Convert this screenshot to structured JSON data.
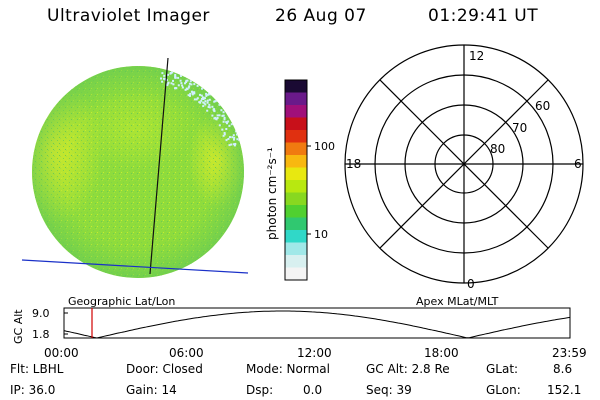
{
  "header": {
    "title": "Ultraviolet Imager",
    "date": "26 Aug 07",
    "time": "01:29:41 UT"
  },
  "colorbar": {
    "label": "photon cm⁻²s⁻¹",
    "ticks": [
      "100",
      "10"
    ],
    "colors": [
      "#1a0a33",
      "#6a1a8a",
      "#a0107a",
      "#c8101a",
      "#e03010",
      "#f07a10",
      "#f8b810",
      "#e8e810",
      "#b8e810",
      "#88d820",
      "#50d030",
      "#30c870",
      "#30d8c8",
      "#a0e8e8",
      "#d8f0f0",
      "#f4f4f4"
    ]
  },
  "imager": {
    "left_label": "Geographic Lat/Lon",
    "right_label": "Apex MLat/MLT"
  },
  "polar": {
    "mlt_labels": [
      "12",
      "18",
      "6",
      "0"
    ],
    "lat_labels": [
      "60",
      "70",
      "80"
    ]
  },
  "altitude_plot": {
    "ylabel": "GC Alt",
    "yticks": [
      "9.0",
      "1.8"
    ],
    "xticks": [
      "00:00",
      "06:00",
      "12:00",
      "18:00",
      "23:59"
    ],
    "marker_color": "#d00000"
  },
  "info": {
    "flt": "Flt: LBHL",
    "ip": "IP: 36.0",
    "door": "Door: Closed",
    "gain": "Gain: 14",
    "mode": "Mode: Normal",
    "dsp_label": "Dsp:",
    "dsp_value": "0.0",
    "gc_alt": "GC Alt: 2.8 Re",
    "seq": "Seq: 39",
    "glat_label": "GLat:",
    "glat_value": "8.6",
    "glon_label": "GLon:",
    "glon_value": "152.1"
  },
  "styles": {
    "globe_base": "#8fdc3c",
    "globe_light": "#b8e830",
    "globe_bright": "#d8ec28",
    "globe_dark": "#66cc55",
    "globe_speckle": "#d0f0ff",
    "meridian": "#101010",
    "horizon": "#1a30c8"
  }
}
